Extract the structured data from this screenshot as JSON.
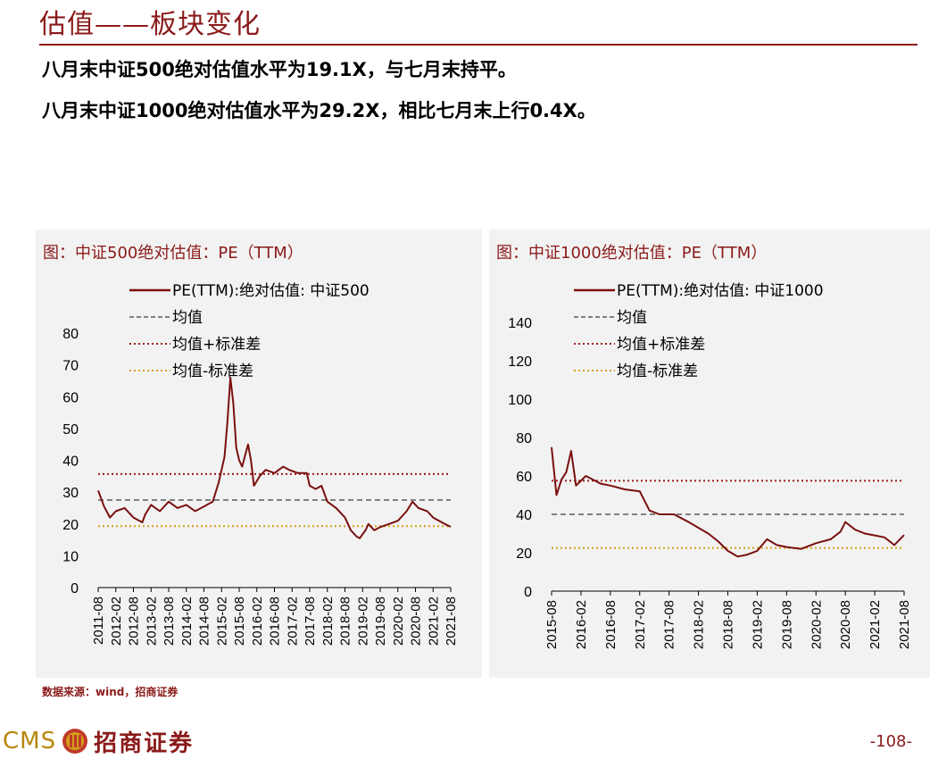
{
  "header": {
    "title": "估值——板块变化"
  },
  "bullets": [
    "八月末中证500绝对估值水平为19.1X，与七月末持平。",
    "八月末中证1000绝对估值水平为29.2X，相比七月末上行0.4X。"
  ],
  "colors": {
    "brand": "#8b1a1a",
    "series": "#7a0f0f",
    "mean": "#808080",
    "upper": "#a01818",
    "lower": "#d4a017",
    "panel_bg": "#f2f2f2"
  },
  "chart_data": [
    {
      "type": "line",
      "panel_title": "图：中证500绝对估值：PE（TTM）",
      "legend_position": "top-right",
      "legend": [
        "PE(TTM):绝对估值: 中证500",
        "均值",
        "均值+标准差",
        "均值-标准差"
      ],
      "ylim": [
        0,
        80
      ],
      "yticks": [
        "0",
        "10",
        "20",
        "30",
        "40",
        "50",
        "60",
        "70",
        "80"
      ],
      "xlim": [
        "2011-08",
        "2021-08"
      ],
      "xticks": [
        "2011-08",
        "2012-02",
        "2012-08",
        "2013-02",
        "2013-08",
        "2014-02",
        "2014-08",
        "2015-02",
        "2015-08",
        "2016-02",
        "2016-08",
        "2017-02",
        "2017-08",
        "2018-02",
        "2018-08",
        "2019-02",
        "2019-08",
        "2020-02",
        "2020-08",
        "2021-02",
        "2021-08"
      ],
      "reference_lines": {
        "mean": 27.5,
        "mean_plus_std": 35.7,
        "mean_minus_std": 19.3
      },
      "series": [
        {
          "name": "PE(TTM):绝对估值: 中证500",
          "x": [
            "2011-08",
            "2011-10",
            "2011-12",
            "2012-02",
            "2012-05",
            "2012-08",
            "2012-11",
            "2012-12",
            "2013-02",
            "2013-05",
            "2013-08",
            "2013-11",
            "2014-02",
            "2014-05",
            "2014-08",
            "2014-11",
            "2015-01",
            "2015-03",
            "2015-04",
            "2015-05",
            "2015-06",
            "2015-07",
            "2015-08",
            "2015-09",
            "2015-11",
            "2015-12",
            "2016-01",
            "2016-03",
            "2016-05",
            "2016-08",
            "2016-11",
            "2017-01",
            "2017-04",
            "2017-07",
            "2017-08",
            "2017-10",
            "2017-12",
            "2018-02",
            "2018-05",
            "2018-08",
            "2018-10",
            "2018-12",
            "2019-01",
            "2019-03",
            "2019-04",
            "2019-06",
            "2019-08",
            "2019-11",
            "2020-02",
            "2020-05",
            "2020-07",
            "2020-09",
            "2020-12",
            "2021-02",
            "2021-04",
            "2021-06",
            "2021-08"
          ],
          "values": [
            30.5,
            25.5,
            22,
            24,
            25,
            22,
            20.5,
            23,
            26,
            24,
            27,
            25,
            26,
            24,
            25.5,
            27,
            33,
            41,
            52,
            66,
            58,
            44,
            40,
            38,
            45,
            40,
            32,
            35,
            37,
            36,
            38,
            37,
            36,
            36,
            32,
            31,
            32,
            27,
            25,
            22,
            18,
            16,
            15.5,
            18,
            20,
            18,
            19,
            20,
            21,
            24,
            27,
            25,
            24,
            22,
            21,
            20,
            19.1
          ]
        }
      ]
    },
    {
      "type": "line",
      "panel_title": "图：中证1000绝对估值：PE（TTM）",
      "legend_position": "top-right",
      "legend": [
        "PE(TTM):绝对估值: 中证1000",
        "均值",
        "均值+标准差",
        "均值-标准差"
      ],
      "ylim": [
        0,
        140
      ],
      "yticks": [
        "0",
        "20",
        "40",
        "60",
        "80",
        "100",
        "120",
        "140"
      ],
      "xlim": [
        "2015-08",
        "2021-08"
      ],
      "xticks": [
        "2015-08",
        "2016-02",
        "2016-08",
        "2017-02",
        "2017-08",
        "2018-02",
        "2018-08",
        "2019-02",
        "2019-08",
        "2020-02",
        "2020-08",
        "2021-02",
        "2021-08"
      ],
      "reference_lines": {
        "mean": 40,
        "mean_plus_std": 57.5,
        "mean_minus_std": 22.5
      },
      "series": [
        {
          "name": "PE(TTM):绝对估值: 中证1000",
          "x": [
            "2015-08",
            "2015-09",
            "2015-10",
            "2015-11",
            "2015-12",
            "2016-01",
            "2016-03",
            "2016-06",
            "2016-08",
            "2016-11",
            "2017-02",
            "2017-04",
            "2017-06",
            "2017-09",
            "2017-12",
            "2018-02",
            "2018-04",
            "2018-06",
            "2018-08",
            "2018-10",
            "2018-12",
            "2019-02",
            "2019-04",
            "2019-06",
            "2019-08",
            "2019-11",
            "2020-02",
            "2020-05",
            "2020-07",
            "2020-08",
            "2020-10",
            "2020-12",
            "2021-02",
            "2021-04",
            "2021-06",
            "2021-08"
          ],
          "values": [
            75,
            50,
            58,
            62,
            73,
            55,
            60,
            56,
            55,
            53,
            52,
            42,
            40,
            40,
            36,
            33,
            30,
            26,
            21,
            18,
            19,
            21,
            27,
            24,
            23,
            22,
            25,
            27,
            31,
            36,
            32,
            30,
            29,
            28,
            24,
            29.2
          ]
        }
      ]
    }
  ],
  "footer": {
    "source": "数据来源：wind，招商证券",
    "logo_text_en": "CMS",
    "logo_text_cn": "招商证券",
    "page_number": "-108-"
  }
}
